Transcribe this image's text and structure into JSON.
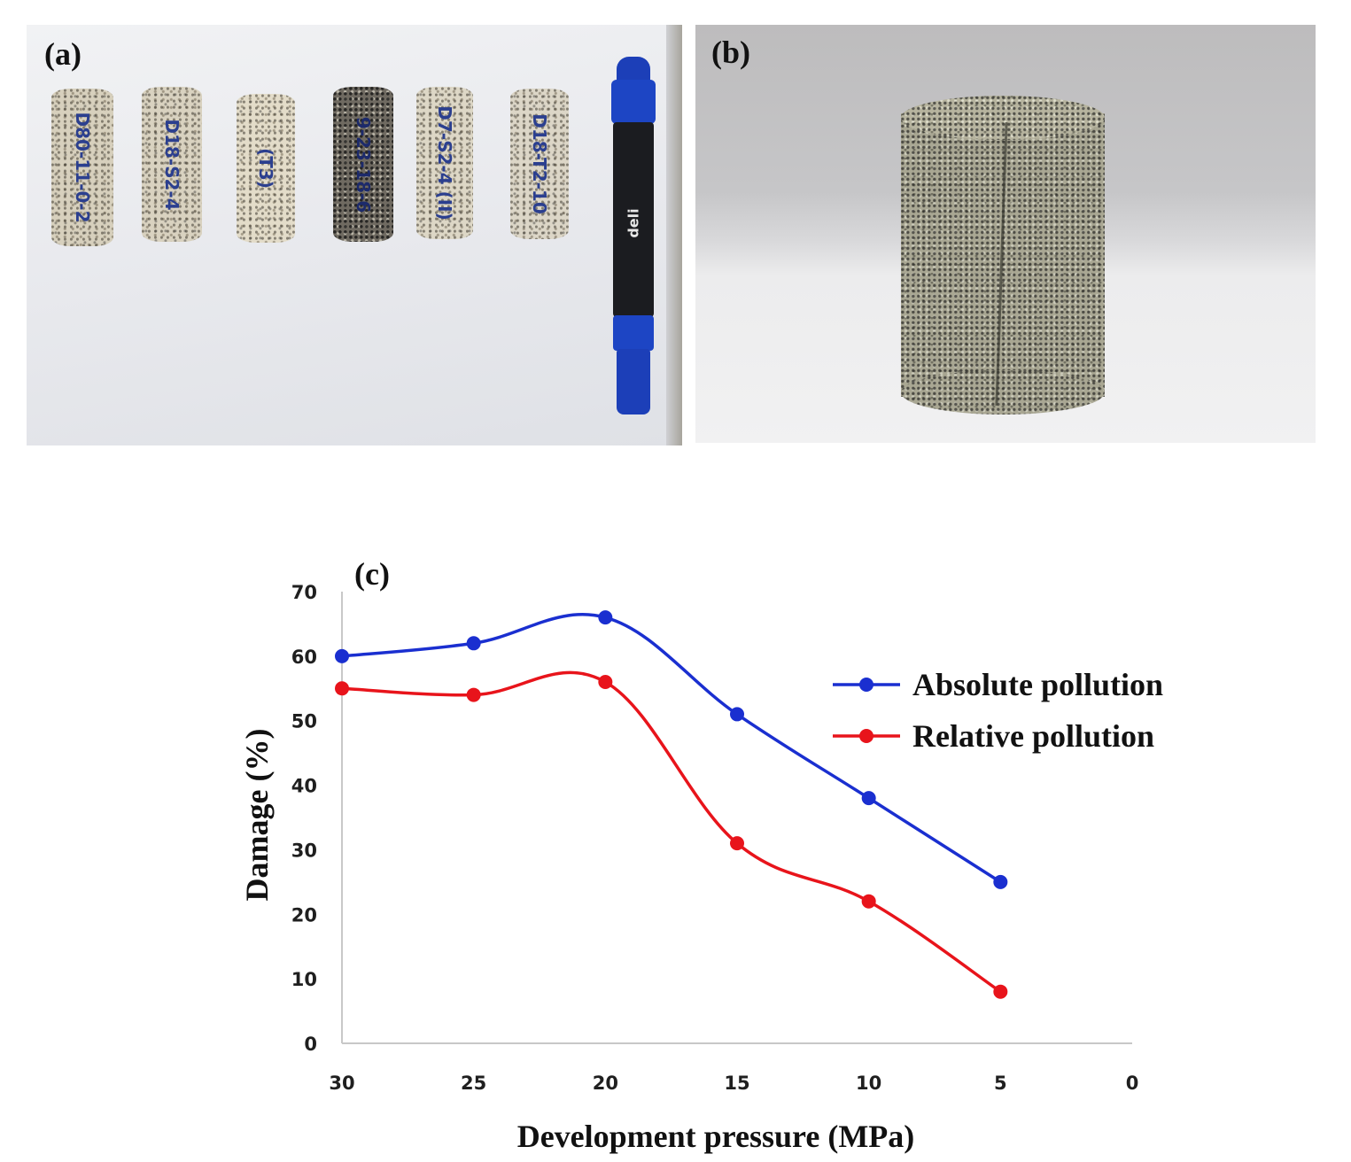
{
  "panels": {
    "a": {
      "label": "(a)",
      "core_labels": [
        "D80-11-0-2",
        "D18-S2-4",
        "(T3)",
        "9-23-18-6",
        "D7-S2-4 (II)",
        "D18-T2-10"
      ],
      "marker_text": "deli"
    },
    "b": {
      "label": "(b)"
    }
  },
  "colors": {
    "absolute": "#1a2fd0",
    "relative": "#e8141b",
    "axis": "#c8c8c8"
  },
  "chart_data": {
    "type": "line",
    "panel_label": "(c)",
    "title": "",
    "xlabel": "Development pressure (MPa)",
    "ylabel": "Damage (%)",
    "x_reversed": true,
    "xlim": [
      30,
      0
    ],
    "ylim": [
      0,
      70
    ],
    "x_ticks": [
      30,
      25,
      20,
      15,
      10,
      5,
      0
    ],
    "y_ticks": [
      0,
      10,
      20,
      30,
      40,
      50,
      60,
      70
    ],
    "grid": false,
    "legend_position": "right",
    "smooth": true,
    "x": [
      30,
      25,
      20,
      15,
      10,
      5
    ],
    "series": [
      {
        "name": "Absolute pollution",
        "color": "#1a2fd0",
        "values": [
          60,
          62,
          66,
          51,
          38,
          25
        ]
      },
      {
        "name": "Relative pollution",
        "color": "#e8141b",
        "values": [
          55,
          54,
          56,
          31,
          22,
          8
        ]
      }
    ]
  }
}
